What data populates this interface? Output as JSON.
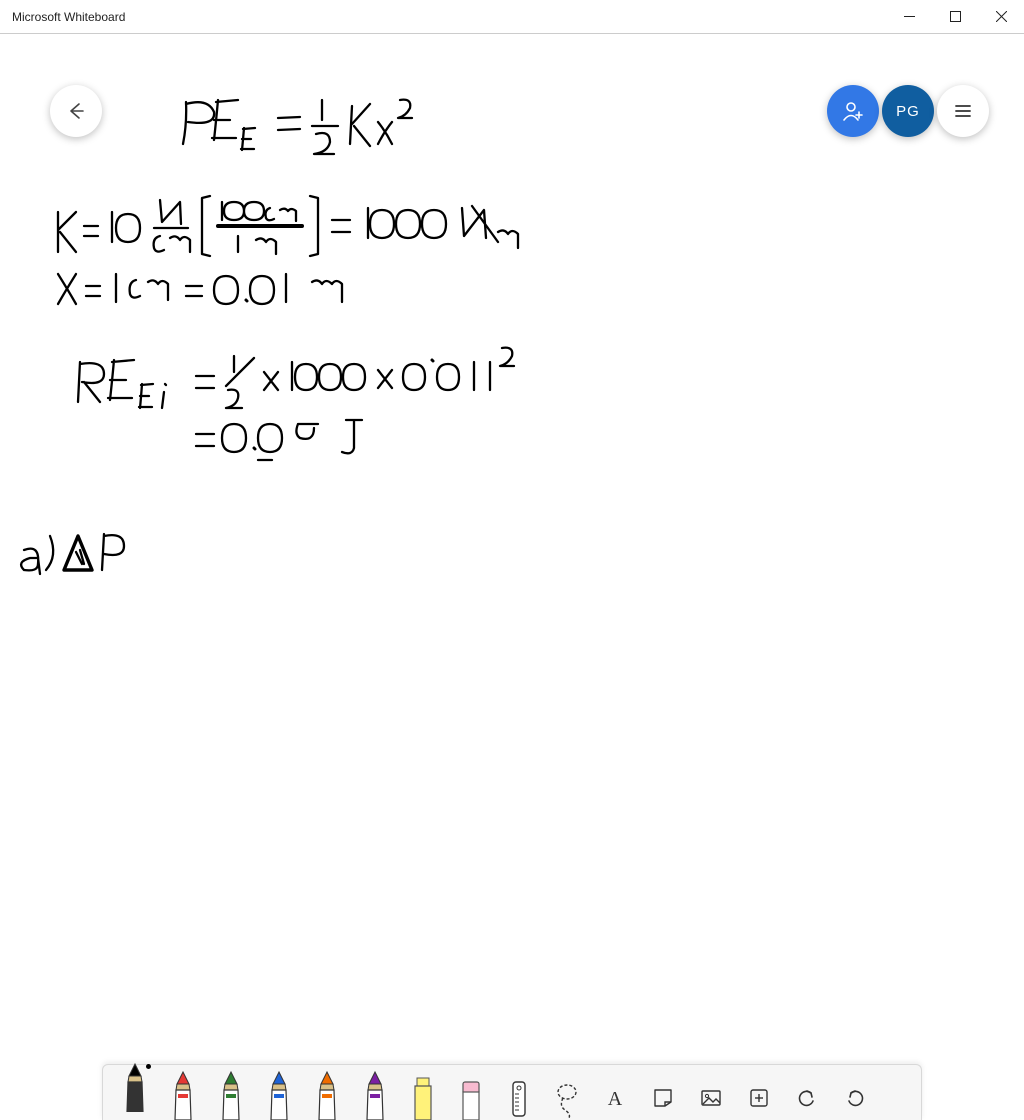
{
  "window": {
    "title": "Microsoft Whiteboard"
  },
  "header": {
    "invite_color": "#3278e6",
    "avatar_initials": "PG",
    "avatar_color": "#105ea0"
  },
  "toolbar": {
    "pens": [
      {
        "name": "pen-black",
        "body": "#333333",
        "tip": "#000000",
        "active": true
      },
      {
        "name": "pen-red",
        "body": "#ffffff",
        "tip": "#e53935",
        "active": false
      },
      {
        "name": "pen-green",
        "body": "#ffffff",
        "tip": "#2e7d32",
        "active": false
      },
      {
        "name": "pen-blue",
        "body": "#ffffff",
        "tip": "#1e63d6",
        "active": false
      },
      {
        "name": "pen-orange",
        "body": "#ffffff",
        "tip": "#ef6c00",
        "active": false
      },
      {
        "name": "pen-purple",
        "body": "#ffffff",
        "tip": "#7b1fa2",
        "active": false
      },
      {
        "name": "highlighter",
        "body": "#fff27a",
        "tip": "#fff27a",
        "active": false
      },
      {
        "name": "eraser",
        "body": "#ffffff",
        "tip": "#f8bbd0",
        "active": false
      }
    ],
    "tools": [
      {
        "name": "ruler-tool"
      },
      {
        "name": "lasso-tool"
      },
      {
        "name": "text-tool"
      },
      {
        "name": "note-tool"
      },
      {
        "name": "image-tool"
      },
      {
        "name": "add-tool"
      },
      {
        "name": "undo"
      },
      {
        "name": "redo"
      }
    ]
  },
  "handwriting": {
    "stroke": "#000000",
    "lines": [
      "PE_E = ½ Kx²",
      "K = 10 N/cm [100cm / 1m] = 1000 N/m",
      "x = 1 cm = 0.01 m",
      "PE_Ei = ½ × 1000 × 0.01²",
      "      = 0.05 J",
      "a) ΔP"
    ]
  }
}
